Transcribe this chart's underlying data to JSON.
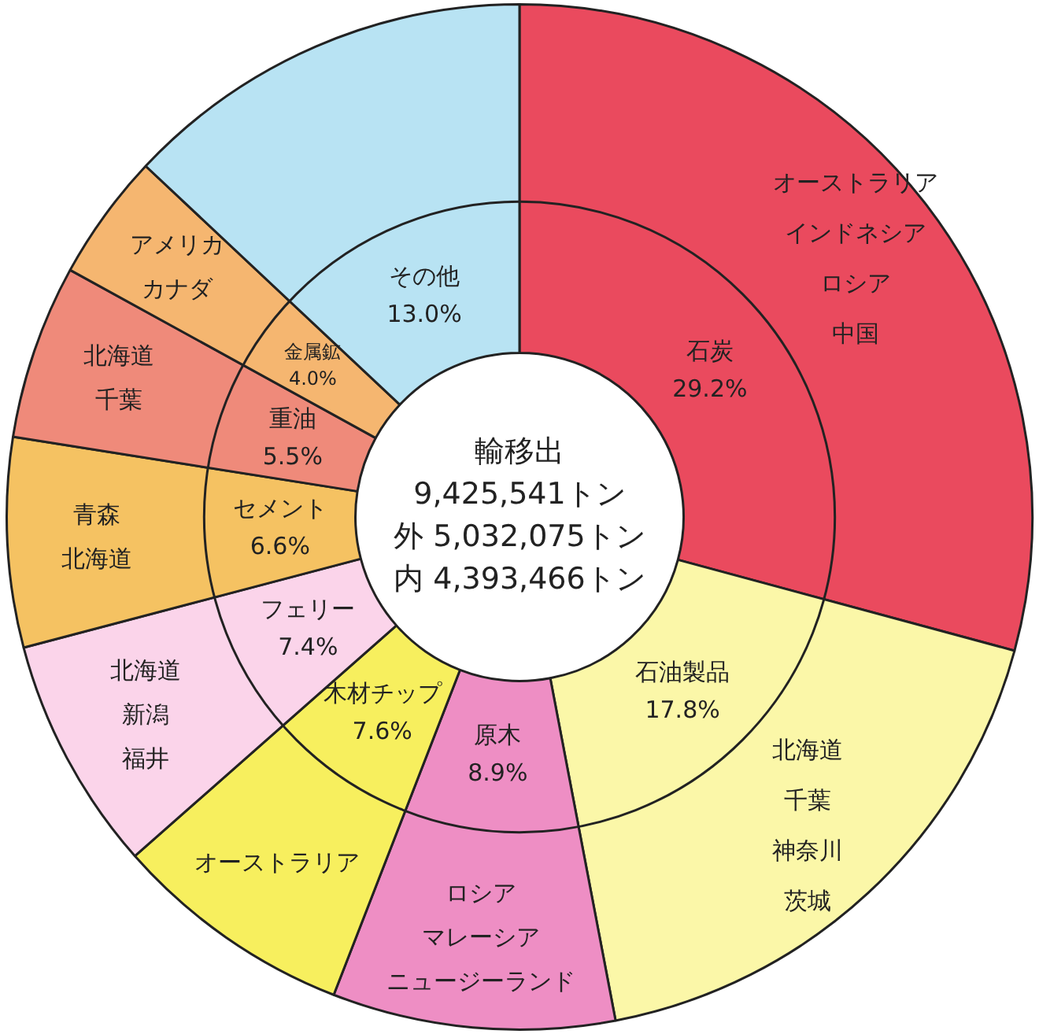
{
  "chart_data": {
    "type": "donut",
    "categories": [
      "石炭",
      "石油製品",
      "原木",
      "木材チップ",
      "フェリー",
      "セメント",
      "重油",
      "金属鉱",
      "その他"
    ],
    "values": [
      29.2,
      17.8,
      8.9,
      7.6,
      7.4,
      6.6,
      5.5,
      4.0,
      13.0
    ],
    "value_labels": [
      "29.2%",
      "17.8%",
      "8.9%",
      "7.6%",
      "7.4%",
      "6.6%",
      "5.5%",
      "4.0%",
      "13.0%"
    ],
    "colors": [
      "#ea4a5e",
      "#fbf7a8",
      "#ee8ec4",
      "#f7ef5e",
      "#fbd4ea",
      "#f5c262",
      "#ef8a7a",
      "#f5b670",
      "#b8e3f3"
    ],
    "legend": false,
    "annotations": [
      "輸移出",
      "9,425,541トン",
      "外 5,032,075トン",
      "内 4,393,466トン",
      {
        "text": "オーストラリア",
        "x": "石炭"
      },
      {
        "text": "インドネシア",
        "x": "石炭"
      },
      {
        "text": "ロシア",
        "x": "石炭"
      },
      {
        "text": "中国",
        "x": "石炭"
      },
      {
        "text": "北海道",
        "x": "石油製品"
      },
      {
        "text": "千葉",
        "x": "石油製品"
      },
      {
        "text": "神奈川",
        "x": "石油製品"
      },
      {
        "text": "茨城",
        "x": "石油製品"
      },
      {
        "text": "ロシア",
        "x": "原木"
      },
      {
        "text": "マレーシア",
        "x": "原木"
      },
      {
        "text": "ニュージーランド",
        "x": "原木"
      },
      {
        "text": "オーストラリア",
        "x": "木材チップ"
      },
      {
        "text": "北海道",
        "x": "フェリー"
      },
      {
        "text": "新潟",
        "x": "フェリー"
      },
      {
        "text": "福井",
        "x": "フェリー"
      },
      {
        "text": "青森",
        "x": "セメント"
      },
      {
        "text": "北海道",
        "x": "セメント"
      },
      {
        "text": "北海道",
        "x": "重油"
      },
      {
        "text": "千葉",
        "x": "重油"
      },
      {
        "text": "アメリカ",
        "x": "金属鉱"
      },
      {
        "text": "カナダ",
        "x": "金属鉱"
      }
    ]
  }
}
